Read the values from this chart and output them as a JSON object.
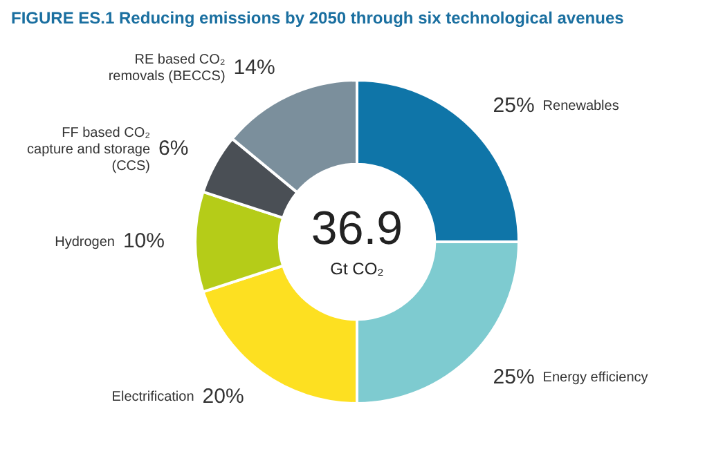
{
  "chart_data": {
    "type": "donut",
    "title": "FIGURE ES.1  Reducing emissions by 2050 through six technological avenues",
    "categories": [
      "Renewables",
      "Energy efficiency",
      "Electrification",
      "Hydrogen",
      "FF based CO₂ capture and storage (CCS)",
      "RE based CO₂ removals (BECCS)"
    ],
    "values": [
      25,
      25,
      20,
      10,
      6,
      14
    ],
    "value_labels": [
      "25%",
      "25%",
      "20%",
      "10%",
      "6%",
      "14%"
    ],
    "colors": [
      "#0f75a8",
      "#7ecbd0",
      "#fde021",
      "#b5cc18",
      "#4a4f55",
      "#7b8f9c"
    ],
    "annotations": [
      "36.9",
      "Gt CO₂"
    ],
    "legend": false
  }
}
